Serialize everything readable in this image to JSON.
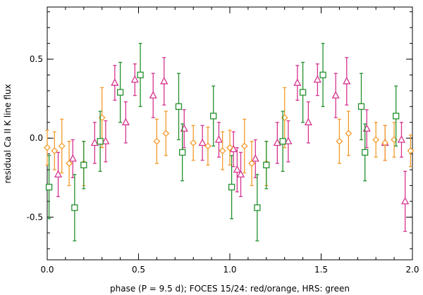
{
  "chart_data": {
    "type": "scatter",
    "title": "",
    "xlabel": "phase (P = 9.5 d); FOCES 15/24: red/orange, HRS: green",
    "ylabel": "residual Ca II K line flux",
    "xlim": [
      0.0,
      2.0
    ],
    "ylim": [
      -0.77,
      0.83
    ],
    "x_ticks": [
      {
        "value": 0.0,
        "label": "0.0"
      },
      {
        "value": 0.5,
        "label": "0.5"
      },
      {
        "value": 1.0,
        "label": "1.0"
      },
      {
        "value": 1.5,
        "label": "1.5"
      },
      {
        "value": 2.0,
        "label": "2.0"
      }
    ],
    "y_ticks": [
      {
        "value": -0.5,
        "label": "-0.5"
      },
      {
        "value": 0.0,
        "label": "0.0"
      },
      {
        "value": 0.5,
        "label": "0.5"
      }
    ],
    "grid": false,
    "legend": "none",
    "series": [
      {
        "marker": "triangle",
        "color": "#d6338f",
        "points": [
          {
            "x": 0.06,
            "y": -0.23,
            "err": 0.14
          },
          {
            "x": 0.14,
            "y": -0.13,
            "err": 0.12
          },
          {
            "x": 0.26,
            "y": -0.03,
            "err": 0.13
          },
          {
            "x": 0.32,
            "y": -0.02,
            "err": 0.13
          },
          {
            "x": 0.37,
            "y": 0.35,
            "err": 0.11
          },
          {
            "x": 0.43,
            "y": 0.1,
            "err": 0.13
          },
          {
            "x": 0.48,
            "y": 0.37,
            "err": 0.1
          },
          {
            "x": 0.58,
            "y": 0.27,
            "err": 0.14
          },
          {
            "x": 0.64,
            "y": 0.36,
            "err": 0.15
          },
          {
            "x": 0.75,
            "y": 0.06,
            "err": 0.12
          },
          {
            "x": 0.85,
            "y": -0.03,
            "err": 0.11
          },
          {
            "x": 0.94,
            "y": -0.01,
            "err": 0.11
          },
          {
            "x": 1.02,
            "y": -0.07,
            "err": 0.11
          },
          {
            "x": 1.04,
            "y": -0.2,
            "err": 0.14
          },
          {
            "x": 1.06,
            "y": -0.23,
            "err": 0.14
          },
          {
            "x": 1.14,
            "y": -0.13,
            "err": 0.12
          },
          {
            "x": 1.26,
            "y": -0.03,
            "err": 0.13
          },
          {
            "x": 1.32,
            "y": -0.02,
            "err": 0.13
          },
          {
            "x": 1.37,
            "y": 0.35,
            "err": 0.11
          },
          {
            "x": 1.43,
            "y": 0.1,
            "err": 0.13
          },
          {
            "x": 1.48,
            "y": 0.37,
            "err": 0.1
          },
          {
            "x": 1.58,
            "y": 0.27,
            "err": 0.14
          },
          {
            "x": 1.64,
            "y": 0.36,
            "err": 0.15
          },
          {
            "x": 1.75,
            "y": 0.06,
            "err": 0.12
          },
          {
            "x": 1.85,
            "y": -0.03,
            "err": 0.11
          },
          {
            "x": 1.94,
            "y": -0.01,
            "err": 0.11
          },
          {
            "x": 1.96,
            "y": -0.4,
            "err": 0.19
          }
        ]
      },
      {
        "marker": "diamond",
        "color": "#f39a28",
        "points": [
          {
            "x": 0.0,
            "y": -0.06,
            "err": 0.11
          },
          {
            "x": 0.04,
            "y": -0.08,
            "err": 0.12
          },
          {
            "x": 0.08,
            "y": -0.05,
            "err": 0.17
          },
          {
            "x": 0.12,
            "y": -0.16,
            "err": 0.14
          },
          {
            "x": 0.2,
            "y": -0.16,
            "err": 0.14
          },
          {
            "x": 0.3,
            "y": 0.13,
            "err": 0.19
          },
          {
            "x": 0.6,
            "y": -0.02,
            "err": 0.14
          },
          {
            "x": 0.65,
            "y": 0.03,
            "err": 0.14
          },
          {
            "x": 0.8,
            "y": -0.03,
            "err": 0.11
          },
          {
            "x": 0.88,
            "y": -0.05,
            "err": 0.12
          },
          {
            "x": 0.96,
            "y": -0.08,
            "err": 0.12
          },
          {
            "x": 1.0,
            "y": -0.06,
            "err": 0.11
          },
          {
            "x": 1.08,
            "y": -0.05,
            "err": 0.17
          },
          {
            "x": 1.12,
            "y": -0.16,
            "err": 0.14
          },
          {
            "x": 1.2,
            "y": -0.16,
            "err": 0.14
          },
          {
            "x": 1.3,
            "y": 0.13,
            "err": 0.19
          },
          {
            "x": 1.6,
            "y": -0.02,
            "err": 0.14
          },
          {
            "x": 1.65,
            "y": 0.03,
            "err": 0.14
          },
          {
            "x": 1.8,
            "y": -0.01,
            "err": 0.11
          },
          {
            "x": 1.85,
            "y": -0.03,
            "err": 0.11
          },
          {
            "x": 1.9,
            "y": -0.01,
            "err": 0.11
          },
          {
            "x": 1.99,
            "y": -0.08,
            "err": 0.1
          }
        ]
      },
      {
        "marker": "square",
        "color": "#23912e",
        "points": [
          {
            "x": 0.01,
            "y": -0.31,
            "err": 0.2
          },
          {
            "x": 0.15,
            "y": -0.44,
            "err": 0.21
          },
          {
            "x": 0.2,
            "y": -0.17,
            "err": 0.15
          },
          {
            "x": 0.29,
            "y": -0.02,
            "err": 0.19
          },
          {
            "x": 0.4,
            "y": 0.29,
            "err": 0.19
          },
          {
            "x": 0.51,
            "y": 0.4,
            "err": 0.2
          },
          {
            "x": 0.72,
            "y": 0.2,
            "err": 0.21
          },
          {
            "x": 0.74,
            "y": -0.09,
            "err": 0.18
          },
          {
            "x": 0.91,
            "y": 0.14,
            "err": 0.19
          },
          {
            "x": 1.01,
            "y": -0.31,
            "err": 0.2
          },
          {
            "x": 1.15,
            "y": -0.44,
            "err": 0.21
          },
          {
            "x": 1.2,
            "y": -0.17,
            "err": 0.15
          },
          {
            "x": 1.29,
            "y": -0.02,
            "err": 0.19
          },
          {
            "x": 1.4,
            "y": 0.29,
            "err": 0.19
          },
          {
            "x": 1.51,
            "y": 0.4,
            "err": 0.2
          },
          {
            "x": 1.72,
            "y": 0.2,
            "err": 0.21
          },
          {
            "x": 1.74,
            "y": -0.09,
            "err": 0.18
          },
          {
            "x": 1.91,
            "y": 0.14,
            "err": 0.19
          }
        ]
      }
    ]
  }
}
